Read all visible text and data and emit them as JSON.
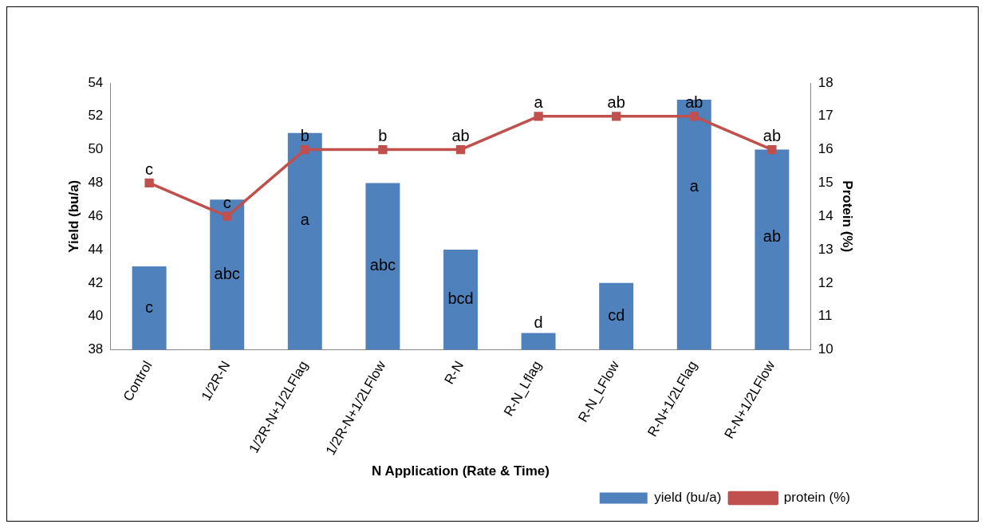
{
  "chart_data": {
    "type": "bar",
    "categories": [
      "Control",
      "1/2R-N",
      "1/2R-N+1/2LFlag",
      "1/2R-N+1/2LFlow",
      "R-N",
      "R-N_Lflag",
      "R-N_LFlow",
      "R-N+1/2LFlag",
      "R-N+1/2LFlow"
    ],
    "series": [
      {
        "name": "yield (bu/a)",
        "color": "#4f81bd",
        "values": [
          43,
          47,
          51,
          48,
          44,
          39,
          42,
          53,
          50
        ],
        "value_labels": [
          "c",
          "abc",
          "a",
          "abc",
          "bcd",
          "d",
          "cd",
          "a",
          "ab"
        ]
      },
      {
        "name": "protein (%)",
        "type": "line",
        "axis": "y2",
        "color": "#c0504d",
        "values": [
          15,
          14,
          16,
          16,
          16,
          17,
          17,
          17,
          16
        ],
        "value_labels": [
          "c",
          "c",
          "b",
          "b",
          "ab",
          "a",
          "ab",
          "ab",
          "ab"
        ]
      }
    ],
    "xlabel": "N Application (Rate & Time)",
    "ylabel": "Yield (bu/a)",
    "y2label": "Protein (%)",
    "ylim": [
      38,
      54
    ],
    "yticks": [
      38,
      40,
      42,
      44,
      46,
      48,
      50,
      52,
      54
    ],
    "y2lim": [
      10,
      18
    ],
    "y2ticks": [
      10,
      11,
      12,
      13,
      14,
      15,
      16,
      17,
      18
    ],
    "marker": "square",
    "line_style": "solid",
    "legend": "bottom right",
    "grid": false
  }
}
